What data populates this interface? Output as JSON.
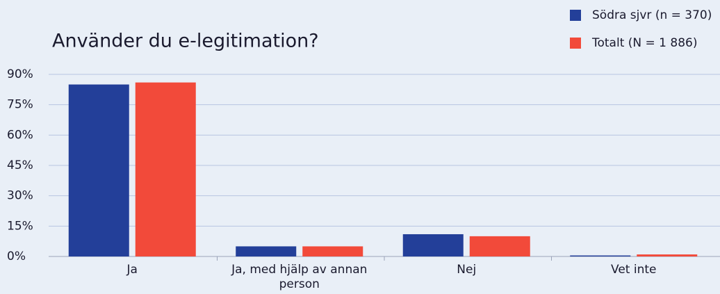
{
  "chart_data": {
    "type": "bar",
    "title": "Använder du e-legitimation?",
    "categories": [
      "Ja",
      "Ja, med hjälp av annan person",
      "Nej",
      "Vet inte"
    ],
    "series": [
      {
        "name": "Södra sjvr (n = 370)",
        "color": "#233f99",
        "values": [
          85,
          5,
          11,
          0.5
        ]
      },
      {
        "name": "Totalt (N = 1 886)",
        "color": "#f24a3a",
        "values": [
          86,
          5,
          10,
          1
        ]
      }
    ],
    "ylim": [
      0,
      90
    ],
    "yticks": [
      {
        "value": 0,
        "label": "0%"
      },
      {
        "value": 15,
        "label": "15%"
      },
      {
        "value": 30,
        "label": "30%"
      },
      {
        "value": 45,
        "label": "45%"
      },
      {
        "value": 60,
        "label": "60%"
      },
      {
        "value": 75,
        "label": "75%"
      },
      {
        "value": 90,
        "label": "90%"
      }
    ],
    "grid": true,
    "legend": "top-right"
  }
}
